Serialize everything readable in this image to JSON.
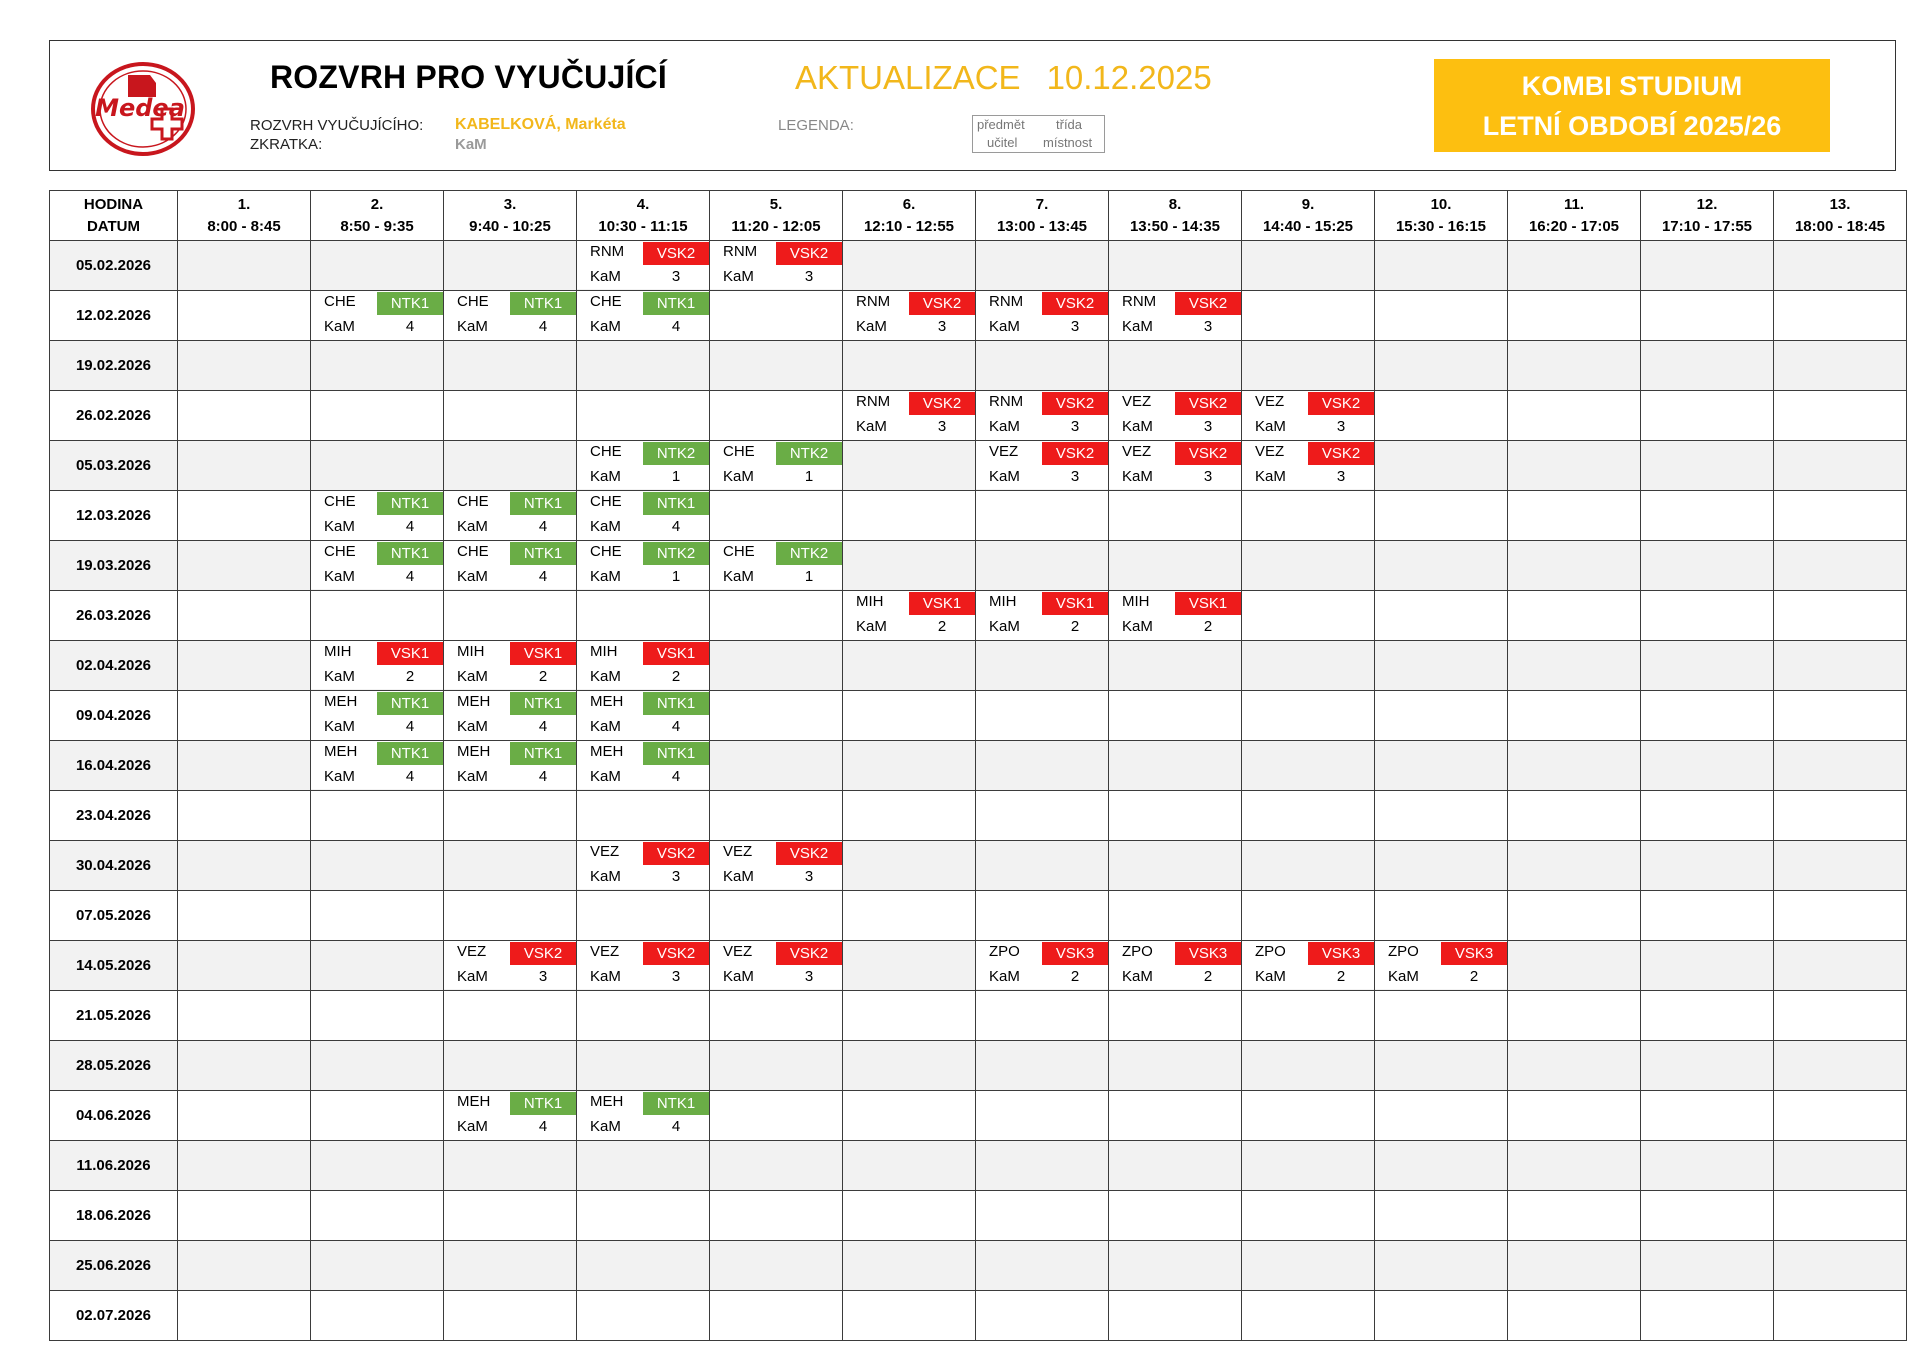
{
  "header": {
    "title": "ROZVRH PRO VYUČUJÍCÍ",
    "update_label": "AKTUALIZACE",
    "update_date": "10.12.2025",
    "teacher_label": "ROZVRH VYUČUJÍCÍHO:",
    "teacher_name": "KABELKOVÁ, Markéta",
    "abbr_label": "ZKRATKA:",
    "abbr_value": "KaM",
    "legend_label": "LEGENDA:",
    "legend": {
      "subject": "předmět",
      "class": "třída",
      "teacher": "učitel",
      "room": "místnost"
    },
    "kombi_line1": "KOMBI STUDIUM",
    "kombi_line2": "LETNÍ OBDOBÍ 2025/26",
    "logo_text": "Medea"
  },
  "colors": {
    "red": "#ee1b1b",
    "green": "#6aad46",
    "accent": "#fdbf10",
    "update": "#f2b71b"
  },
  "corner": {
    "line1": "HODINA",
    "line2": "DATUM"
  },
  "hours": [
    {
      "num": "1.",
      "time": "8:00 - 8:45"
    },
    {
      "num": "2.",
      "time": "8:50 - 9:35"
    },
    {
      "num": "3.",
      "time": "9:40 - 10:25"
    },
    {
      "num": "4.",
      "time": "10:30 - 11:15"
    },
    {
      "num": "5.",
      "time": "11:20 - 12:05"
    },
    {
      "num": "6.",
      "time": "12:10 - 12:55"
    },
    {
      "num": "7.",
      "time": "13:00 - 13:45"
    },
    {
      "num": "8.",
      "time": "13:50 - 14:35"
    },
    {
      "num": "9.",
      "time": "14:40 - 15:25"
    },
    {
      "num": "10.",
      "time": "15:30 - 16:15"
    },
    {
      "num": "11.",
      "time": "16:20 - 17:05"
    },
    {
      "num": "12.",
      "time": "17:10 - 17:55"
    },
    {
      "num": "13.",
      "time": "18:00 - 18:45"
    }
  ],
  "rows": [
    {
      "date": "05.02.2026",
      "lessons": [
        {
          "h": 4,
          "subject": "RNM",
          "class": "VSK2",
          "color": "red",
          "teacher": "KaM",
          "room": "3"
        },
        {
          "h": 5,
          "subject": "RNM",
          "class": "VSK2",
          "color": "red",
          "teacher": "KaM",
          "room": "3"
        }
      ]
    },
    {
      "date": "12.02.2026",
      "lessons": [
        {
          "h": 2,
          "subject": "CHE",
          "class": "NTK1",
          "color": "green",
          "teacher": "KaM",
          "room": "4"
        },
        {
          "h": 3,
          "subject": "CHE",
          "class": "NTK1",
          "color": "green",
          "teacher": "KaM",
          "room": "4"
        },
        {
          "h": 4,
          "subject": "CHE",
          "class": "NTK1",
          "color": "green",
          "teacher": "KaM",
          "room": "4"
        },
        {
          "h": 6,
          "subject": "RNM",
          "class": "VSK2",
          "color": "red",
          "teacher": "KaM",
          "room": "3"
        },
        {
          "h": 7,
          "subject": "RNM",
          "class": "VSK2",
          "color": "red",
          "teacher": "KaM",
          "room": "3"
        },
        {
          "h": 8,
          "subject": "RNM",
          "class": "VSK2",
          "color": "red",
          "teacher": "KaM",
          "room": "3"
        }
      ]
    },
    {
      "date": "19.02.2026",
      "lessons": []
    },
    {
      "date": "26.02.2026",
      "lessons": [
        {
          "h": 6,
          "subject": "RNM",
          "class": "VSK2",
          "color": "red",
          "teacher": "KaM",
          "room": "3"
        },
        {
          "h": 7,
          "subject": "RNM",
          "class": "VSK2",
          "color": "red",
          "teacher": "KaM",
          "room": "3"
        },
        {
          "h": 8,
          "subject": "VEZ",
          "class": "VSK2",
          "color": "red",
          "teacher": "KaM",
          "room": "3"
        },
        {
          "h": 9,
          "subject": "VEZ",
          "class": "VSK2",
          "color": "red",
          "teacher": "KaM",
          "room": "3"
        }
      ]
    },
    {
      "date": "05.03.2026",
      "lessons": [
        {
          "h": 4,
          "subject": "CHE",
          "class": "NTK2",
          "color": "green",
          "teacher": "KaM",
          "room": "1"
        },
        {
          "h": 5,
          "subject": "CHE",
          "class": "NTK2",
          "color": "green",
          "teacher": "KaM",
          "room": "1"
        },
        {
          "h": 7,
          "subject": "VEZ",
          "class": "VSK2",
          "color": "red",
          "teacher": "KaM",
          "room": "3"
        },
        {
          "h": 8,
          "subject": "VEZ",
          "class": "VSK2",
          "color": "red",
          "teacher": "KaM",
          "room": "3"
        },
        {
          "h": 9,
          "subject": "VEZ",
          "class": "VSK2",
          "color": "red",
          "teacher": "KaM",
          "room": "3"
        }
      ]
    },
    {
      "date": "12.03.2026",
      "lessons": [
        {
          "h": 2,
          "subject": "CHE",
          "class": "NTK1",
          "color": "green",
          "teacher": "KaM",
          "room": "4"
        },
        {
          "h": 3,
          "subject": "CHE",
          "class": "NTK1",
          "color": "green",
          "teacher": "KaM",
          "room": "4"
        },
        {
          "h": 4,
          "subject": "CHE",
          "class": "NTK1",
          "color": "green",
          "teacher": "KaM",
          "room": "4"
        }
      ]
    },
    {
      "date": "19.03.2026",
      "lessons": [
        {
          "h": 2,
          "subject": "CHE",
          "class": "NTK1",
          "color": "green",
          "teacher": "KaM",
          "room": "4"
        },
        {
          "h": 3,
          "subject": "CHE",
          "class": "NTK1",
          "color": "green",
          "teacher": "KaM",
          "room": "4"
        },
        {
          "h": 4,
          "subject": "CHE",
          "class": "NTK2",
          "color": "green",
          "teacher": "KaM",
          "room": "1"
        },
        {
          "h": 5,
          "subject": "CHE",
          "class": "NTK2",
          "color": "green",
          "teacher": "KaM",
          "room": "1"
        }
      ]
    },
    {
      "date": "26.03.2026",
      "lessons": [
        {
          "h": 6,
          "subject": "MIH",
          "class": "VSK1",
          "color": "red",
          "teacher": "KaM",
          "room": "2"
        },
        {
          "h": 7,
          "subject": "MIH",
          "class": "VSK1",
          "color": "red",
          "teacher": "KaM",
          "room": "2"
        },
        {
          "h": 8,
          "subject": "MIH",
          "class": "VSK1",
          "color": "red",
          "teacher": "KaM",
          "room": "2"
        }
      ]
    },
    {
      "date": "02.04.2026",
      "lessons": [
        {
          "h": 2,
          "subject": "MIH",
          "class": "VSK1",
          "color": "red",
          "teacher": "KaM",
          "room": "2"
        },
        {
          "h": 3,
          "subject": "MIH",
          "class": "VSK1",
          "color": "red",
          "teacher": "KaM",
          "room": "2"
        },
        {
          "h": 4,
          "subject": "MIH",
          "class": "VSK1",
          "color": "red",
          "teacher": "KaM",
          "room": "2"
        }
      ]
    },
    {
      "date": "09.04.2026",
      "lessons": [
        {
          "h": 2,
          "subject": "MEH",
          "class": "NTK1",
          "color": "green",
          "teacher": "KaM",
          "room": "4"
        },
        {
          "h": 3,
          "subject": "MEH",
          "class": "NTK1",
          "color": "green",
          "teacher": "KaM",
          "room": "4"
        },
        {
          "h": 4,
          "subject": "MEH",
          "class": "NTK1",
          "color": "green",
          "teacher": "KaM",
          "room": "4"
        }
      ]
    },
    {
      "date": "16.04.2026",
      "lessons": [
        {
          "h": 2,
          "subject": "MEH",
          "class": "NTK1",
          "color": "green",
          "teacher": "KaM",
          "room": "4"
        },
        {
          "h": 3,
          "subject": "MEH",
          "class": "NTK1",
          "color": "green",
          "teacher": "KaM",
          "room": "4"
        },
        {
          "h": 4,
          "subject": "MEH",
          "class": "NTK1",
          "color": "green",
          "teacher": "KaM",
          "room": "4"
        }
      ]
    },
    {
      "date": "23.04.2026",
      "lessons": []
    },
    {
      "date": "30.04.2026",
      "lessons": [
        {
          "h": 4,
          "subject": "VEZ",
          "class": "VSK2",
          "color": "red",
          "teacher": "KaM",
          "room": "3"
        },
        {
          "h": 5,
          "subject": "VEZ",
          "class": "VSK2",
          "color": "red",
          "teacher": "KaM",
          "room": "3"
        }
      ]
    },
    {
      "date": "07.05.2026",
      "lessons": []
    },
    {
      "date": "14.05.2026",
      "lessons": [
        {
          "h": 3,
          "subject": "VEZ",
          "class": "VSK2",
          "color": "red",
          "teacher": "KaM",
          "room": "3"
        },
        {
          "h": 4,
          "subject": "VEZ",
          "class": "VSK2",
          "color": "red",
          "teacher": "KaM",
          "room": "3"
        },
        {
          "h": 5,
          "subject": "VEZ",
          "class": "VSK2",
          "color": "red",
          "teacher": "KaM",
          "room": "3"
        },
        {
          "h": 7,
          "subject": "ZPO",
          "class": "VSK3",
          "color": "red",
          "teacher": "KaM",
          "room": "2"
        },
        {
          "h": 8,
          "subject": "ZPO",
          "class": "VSK3",
          "color": "red",
          "teacher": "KaM",
          "room": "2"
        },
        {
          "h": 9,
          "subject": "ZPO",
          "class": "VSK3",
          "color": "red",
          "teacher": "KaM",
          "room": "2"
        },
        {
          "h": 10,
          "subject": "ZPO",
          "class": "VSK3",
          "color": "red",
          "teacher": "KaM",
          "room": "2"
        }
      ]
    },
    {
      "date": "21.05.2026",
      "lessons": []
    },
    {
      "date": "28.05.2026",
      "lessons": []
    },
    {
      "date": "04.06.2026",
      "lessons": [
        {
          "h": 3,
          "subject": "MEH",
          "class": "NTK1",
          "color": "green",
          "teacher": "KaM",
          "room": "4"
        },
        {
          "h": 4,
          "subject": "MEH",
          "class": "NTK1",
          "color": "green",
          "teacher": "KaM",
          "room": "4"
        }
      ]
    },
    {
      "date": "11.06.2026",
      "lessons": []
    },
    {
      "date": "18.06.2026",
      "lessons": []
    },
    {
      "date": "25.06.2026",
      "lessons": []
    },
    {
      "date": "02.07.2026",
      "lessons": []
    }
  ]
}
